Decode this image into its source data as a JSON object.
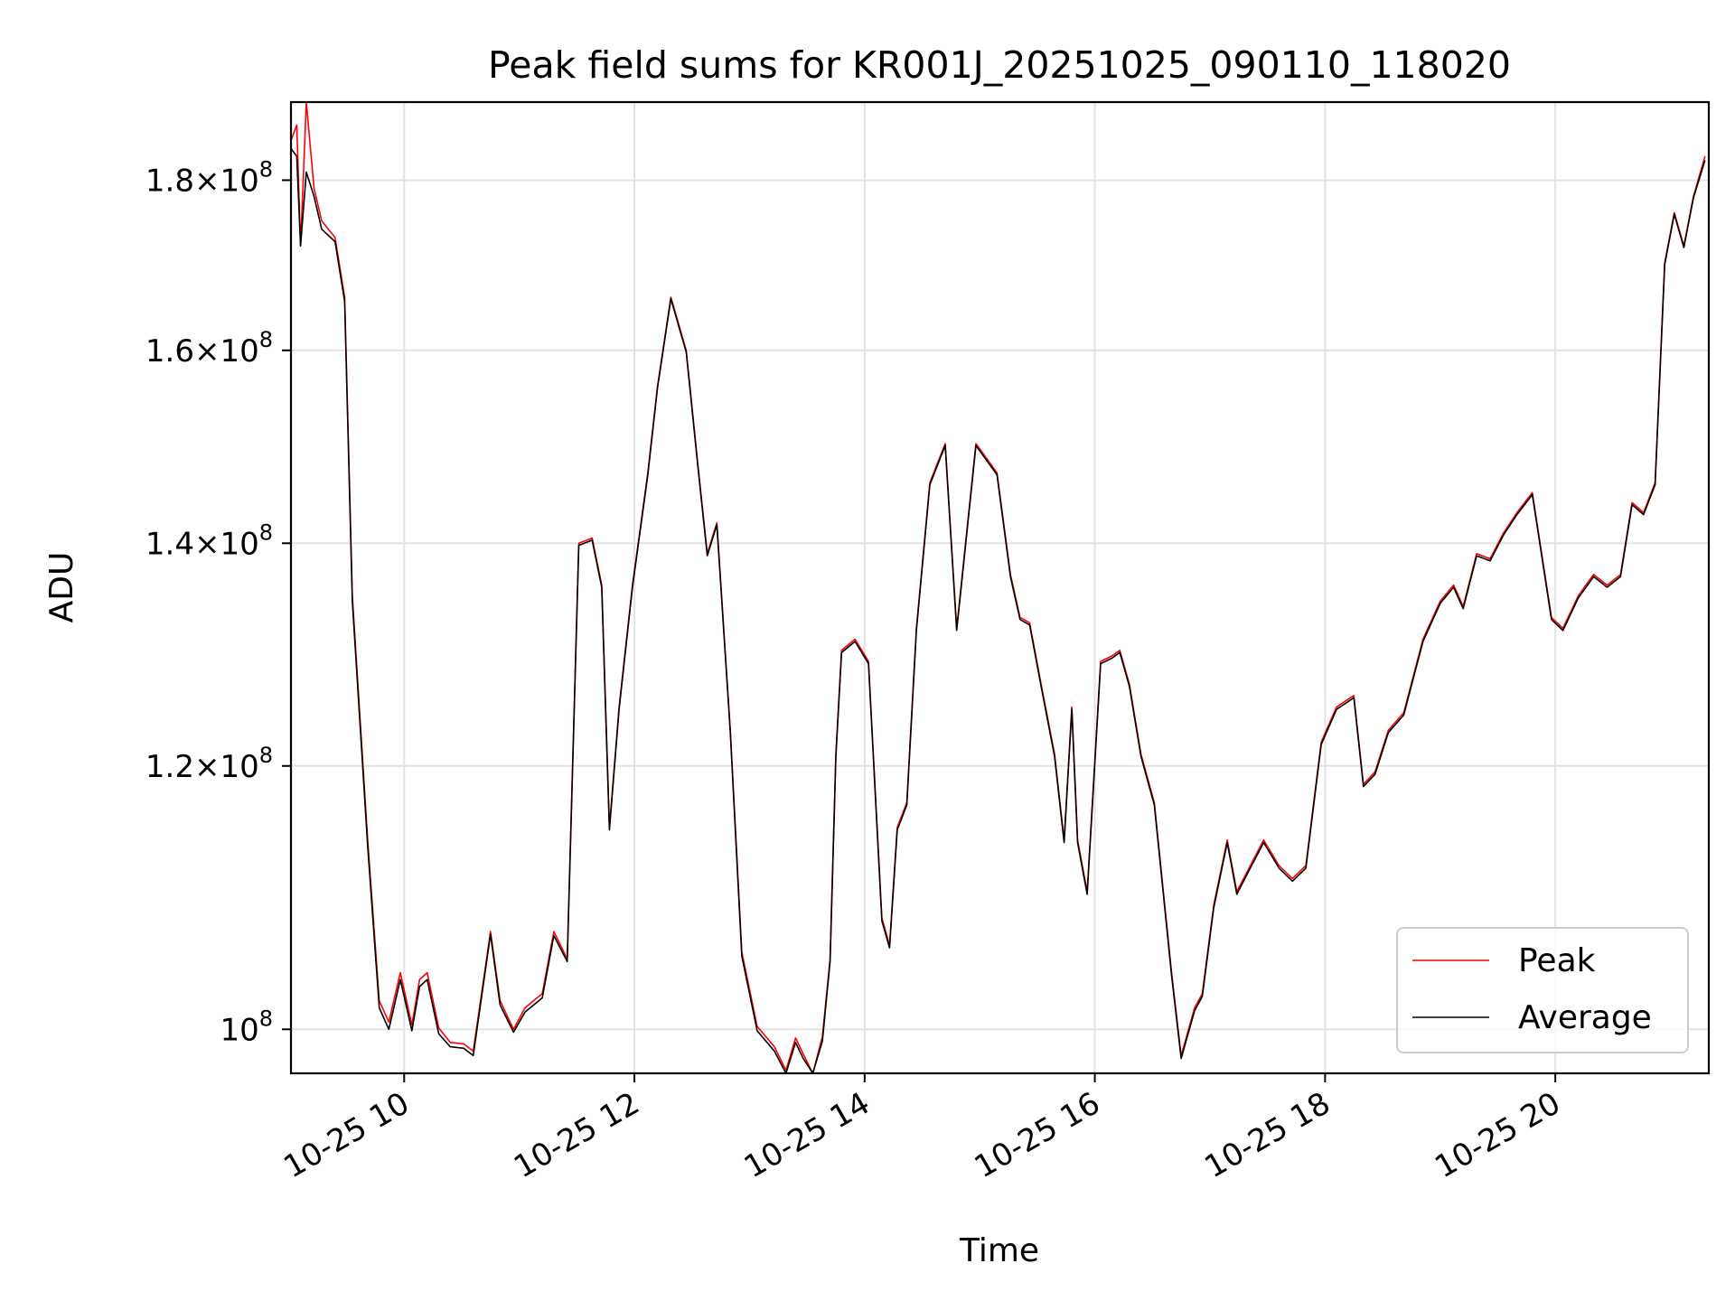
{
  "chart_data": {
    "type": "line",
    "title": "Peak field sums for KR001J_20251025_090110_118020",
    "xlabel": "Time",
    "ylabel": "ADU",
    "y_scale": "log",
    "xlim": [
      "2025-10-25 09:01",
      "2025-10-25 21:20"
    ],
    "ylim": [
      97000000,
      190000000
    ],
    "grid": true,
    "legend_position": "lower right",
    "x_ticks": [
      {
        "value": "2025-10-25 10:00",
        "label": "10-25 10"
      },
      {
        "value": "2025-10-25 12:00",
        "label": "10-25 12"
      },
      {
        "value": "2025-10-25 14:00",
        "label": "10-25 14"
      },
      {
        "value": "2025-10-25 16:00",
        "label": "10-25 16"
      },
      {
        "value": "2025-10-25 18:00",
        "label": "10-25 18"
      },
      {
        "value": "2025-10-25 20:00",
        "label": "10-25 20"
      }
    ],
    "y_ticks": [
      {
        "value": 100000000,
        "mantissa": "",
        "exponent": "8"
      },
      {
        "value": 120000000,
        "mantissa": "1.2",
        "exponent": "8"
      },
      {
        "value": 140000000,
        "mantissa": "1.4",
        "exponent": "8"
      },
      {
        "value": 160000000,
        "mantissa": "1.6",
        "exponent": "8"
      },
      {
        "value": 180000000,
        "mantissa": "1.8",
        "exponent": "8"
      }
    ],
    "x": [
      "2025-10-25 09:01",
      "2025-10-25 09:04",
      "2025-10-25 09:06",
      "2025-10-25 09:09",
      "2025-10-25 09:13",
      "2025-10-25 09:17",
      "2025-10-25 09:24",
      "2025-10-25 09:29",
      "2025-10-25 09:33",
      "2025-10-25 09:41",
      "2025-10-25 09:47",
      "2025-10-25 09:52",
      "2025-10-25 09:58",
      "2025-10-25 10:04",
      "2025-10-25 10:08",
      "2025-10-25 10:12",
      "2025-10-25 10:18",
      "2025-10-25 10:24",
      "2025-10-25 10:31",
      "2025-10-25 10:36",
      "2025-10-25 10:45",
      "2025-10-25 10:50",
      "2025-10-25 10:57",
      "2025-10-25 11:03",
      "2025-10-25 11:12",
      "2025-10-25 11:18",
      "2025-10-25 11:25",
      "2025-10-25 11:31",
      "2025-10-25 11:38",
      "2025-10-25 11:43",
      "2025-10-25 11:47",
      "2025-10-25 11:52",
      "2025-10-25 11:59",
      "2025-10-25 12:07",
      "2025-10-25 12:12",
      "2025-10-25 12:19",
      "2025-10-25 12:27",
      "2025-10-25 12:33",
      "2025-10-25 12:38",
      "2025-10-25 12:43",
      "2025-10-25 12:50",
      "2025-10-25 12:56",
      "2025-10-25 13:04",
      "2025-10-25 13:13",
      "2025-10-25 13:19",
      "2025-10-25 13:24",
      "2025-10-25 13:28",
      "2025-10-25 13:33",
      "2025-10-25 13:38",
      "2025-10-25 13:42",
      "2025-10-25 13:45",
      "2025-10-25 13:48",
      "2025-10-25 13:55",
      "2025-10-25 14:02",
      "2025-10-25 14:09",
      "2025-10-25 14:13",
      "2025-10-25 14:17",
      "2025-10-25 14:22",
      "2025-10-25 14:27",
      "2025-10-25 14:34",
      "2025-10-25 14:42",
      "2025-10-25 14:48",
      "2025-10-25 14:58",
      "2025-10-25 15:09",
      "2025-10-25 15:16",
      "2025-10-25 15:21",
      "2025-10-25 15:26",
      "2025-10-25 15:32",
      "2025-10-25 15:39",
      "2025-10-25 15:44",
      "2025-10-25 15:48",
      "2025-10-25 15:51",
      "2025-10-25 15:56",
      "2025-10-25 16:03",
      "2025-10-25 16:09",
      "2025-10-25 16:13",
      "2025-10-25 16:18",
      "2025-10-25 16:24",
      "2025-10-25 16:31",
      "2025-10-25 16:40",
      "2025-10-25 16:45",
      "2025-10-25 16:52",
      "2025-10-25 16:56",
      "2025-10-25 17:02",
      "2025-10-25 17:09",
      "2025-10-25 17:14",
      "2025-10-25 17:21",
      "2025-10-25 17:28",
      "2025-10-25 17:36",
      "2025-10-25 17:43",
      "2025-10-25 17:50",
      "2025-10-25 17:58",
      "2025-10-25 18:06",
      "2025-10-25 18:15",
      "2025-10-25 18:20",
      "2025-10-25 18:26",
      "2025-10-25 18:33",
      "2025-10-25 18:41",
      "2025-10-25 18:51",
      "2025-10-25 19:00",
      "2025-10-25 19:07",
      "2025-10-25 19:12",
      "2025-10-25 19:19",
      "2025-10-25 19:26",
      "2025-10-25 19:33",
      "2025-10-25 19:40",
      "2025-10-25 19:48",
      "2025-10-25 19:58",
      "2025-10-25 20:04",
      "2025-10-25 20:12",
      "2025-10-25 20:20",
      "2025-10-25 20:27",
      "2025-10-25 20:34",
      "2025-10-25 20:40",
      "2025-10-25 20:46",
      "2025-10-25 20:52",
      "2025-10-25 20:57",
      "2025-10-25 21:02",
      "2025-10-25 21:07",
      "2025-10-25 21:12",
      "2025-10-25 21:18"
    ],
    "series": [
      {
        "name": "Peak",
        "color": "#ff0000",
        "values": [
          185000000,
          187000000,
          172000000,
          190000000,
          179000000,
          175000000,
          173000000,
          166000000,
          135000000,
          114000000,
          102000000,
          100500000,
          104000000,
          100300000,
          103500000,
          104000000,
          100100000,
          99100000,
          99000000,
          98500000,
          107000000,
          102000000,
          100000000,
          101500000,
          102500000,
          107000000,
          105000000,
          140000000,
          140500000,
          136000000,
          115000000,
          125000000,
          136000000,
          147000000,
          156000000,
          166000000,
          160000000,
          148000000,
          139000000,
          142000000,
          123000000,
          105500000,
          100200000,
          98800000,
          97200000,
          99400000,
          98300000,
          97000000,
          99500000,
          105000000,
          121000000,
          130000000,
          131000000,
          129000000,
          108000000,
          106000000,
          115000000,
          117000000,
          132000000,
          146000000,
          150000000,
          132000000,
          150000000,
          147000000,
          137000000,
          133000000,
          132500000,
          127000000,
          121000000,
          114000000,
          125000000,
          114000000,
          110000000,
          129000000,
          129500000,
          130000000,
          127000000,
          121000000,
          117000000,
          104000000,
          98200000,
          101500000,
          102500000,
          109000000,
          114000000,
          110000000,
          112000000,
          114000000,
          112000000,
          111000000,
          112000000,
          122000000,
          125000000,
          126000000,
          118500000,
          119500000,
          123000000,
          124500000,
          131000000,
          134500000,
          136000000,
          134000000,
          139000000,
          138500000,
          141000000,
          143000000,
          145000000,
          133000000,
          132000000,
          135000000,
          137000000,
          136000000,
          137000000,
          144000000,
          143000000,
          146000000,
          170000000,
          176000000,
          172000000,
          178000000,
          183000000
        ]
      },
      {
        "name": "Average",
        "color": "#000000",
        "values": [
          184000000,
          183000000,
          172000000,
          181000000,
          178000000,
          174000000,
          172500000,
          165500000,
          134500000,
          113500000,
          101500000,
          100000000,
          103500000,
          99900000,
          103000000,
          103500000,
          99700000,
          98800000,
          98700000,
          98200000,
          106800000,
          101700000,
          99800000,
          101200000,
          102200000,
          106700000,
          104800000,
          139800000,
          140300000,
          135800000,
          114800000,
          124800000,
          135800000,
          146800000,
          155800000,
          165800000,
          159800000,
          147800000,
          138800000,
          141800000,
          122800000,
          105200000,
          99900000,
          98500000,
          96900000,
          99100000,
          98000000,
          96700000,
          99200000,
          104800000,
          120800000,
          129800000,
          130800000,
          128800000,
          107800000,
          105800000,
          114800000,
          116800000,
          131800000,
          145800000,
          149800000,
          131800000,
          149800000,
          146800000,
          136800000,
          132800000,
          132300000,
          126800000,
          120800000,
          113800000,
          124800000,
          113800000,
          109800000,
          128800000,
          129300000,
          129800000,
          126800000,
          120800000,
          116800000,
          103800000,
          98000000,
          101300000,
          102300000,
          108800000,
          113800000,
          109800000,
          111800000,
          113800000,
          111800000,
          110800000,
          111800000,
          121800000,
          124800000,
          125800000,
          118300000,
          119300000,
          122800000,
          124300000,
          130800000,
          134300000,
          135800000,
          133800000,
          138800000,
          138300000,
          140800000,
          142800000,
          144800000,
          132800000,
          131800000,
          134800000,
          136800000,
          135800000,
          136800000,
          143800000,
          142800000,
          145800000,
          169800000,
          175800000,
          171800000,
          177800000,
          182500000
        ]
      }
    ],
    "legend": [
      "Peak",
      "Average"
    ]
  }
}
